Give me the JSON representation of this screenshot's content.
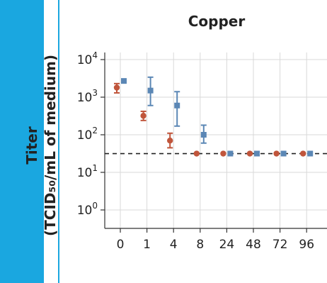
{
  "chart_data": {
    "type": "scatter",
    "title": "Copper",
    "ylabel": "Titer",
    "ylabel_unit": "(TCID₅₀/mL of medium)",
    "xlabel": "",
    "x_scale": "categorical",
    "y_scale": "log",
    "ylim": [
      1,
      10000
    ],
    "yticks": [
      {
        "base": "10",
        "exp": "4",
        "value": 10000
      },
      {
        "base": "10",
        "exp": "3",
        "value": 1000
      },
      {
        "base": "10",
        "exp": "2",
        "value": 100
      },
      {
        "base": "10",
        "exp": "1",
        "value": 10
      },
      {
        "base": "10",
        "exp": "0",
        "value": 1
      }
    ],
    "categories": [
      "0",
      "1",
      "4",
      "8",
      "24",
      "48",
      "72",
      "96"
    ],
    "grid": true,
    "detection_limit": 31.6,
    "series": [
      {
        "color": "#c0553b",
        "marker": "circle",
        "values": [
          1800,
          320,
          70,
          31.6,
          31.6,
          31.6,
          31.6,
          31.6
        ],
        "err_low": [
          1300,
          240,
          45,
          null,
          null,
          null,
          null,
          null
        ],
        "err_high": [
          2300,
          420,
          110,
          null,
          null,
          null,
          null,
          null
        ]
      },
      {
        "color": "#5b87b5",
        "marker": "square",
        "values": [
          2700,
          1500,
          600,
          100,
          31.6,
          31.6,
          31.6,
          31.6
        ],
        "err_low": [
          2400,
          600,
          170,
          60,
          null,
          null,
          null,
          null
        ],
        "err_high": [
          3000,
          3400,
          1400,
          180,
          null,
          null,
          null,
          null
        ]
      }
    ]
  }
}
